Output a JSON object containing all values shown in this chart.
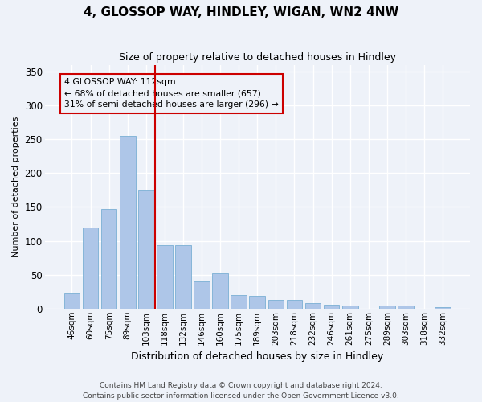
{
  "title1": "4, GLOSSOP WAY, HINDLEY, WIGAN, WN2 4NW",
  "title2": "Size of property relative to detached houses in Hindley",
  "xlabel": "Distribution of detached houses by size in Hindley",
  "ylabel": "Number of detached properties",
  "categories": [
    "46sqm",
    "60sqm",
    "75sqm",
    "89sqm",
    "103sqm",
    "118sqm",
    "132sqm",
    "146sqm",
    "160sqm",
    "175sqm",
    "189sqm",
    "203sqm",
    "218sqm",
    "232sqm",
    "246sqm",
    "261sqm",
    "275sqm",
    "289sqm",
    "303sqm",
    "318sqm",
    "332sqm"
  ],
  "values": [
    22,
    120,
    147,
    255,
    176,
    94,
    93,
    40,
    52,
    20,
    19,
    13,
    13,
    8,
    6,
    5,
    0,
    5,
    5,
    0,
    2
  ],
  "bar_color": "#aec6e8",
  "bar_edgecolor": "#7aafd4",
  "vline_x": 4.5,
  "vline_color": "#cc0000",
  "annotation_title": "4 GLOSSOP WAY: 112sqm",
  "annotation_line1": "← 68% of detached houses are smaller (657)",
  "annotation_line2": "31% of semi-detached houses are larger (296) →",
  "annotation_box_color": "#cc0000",
  "ylim": [
    0,
    360
  ],
  "yticks": [
    0,
    50,
    100,
    150,
    200,
    250,
    300,
    350
  ],
  "footer1": "Contains HM Land Registry data © Crown copyright and database right 2024.",
  "footer2": "Contains public sector information licensed under the Open Government Licence v3.0.",
  "bg_color": "#eef2f9",
  "grid_color": "#ffffff"
}
